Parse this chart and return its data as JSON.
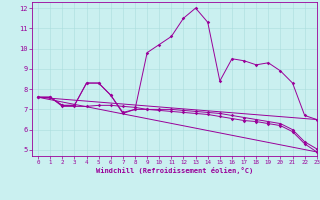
{
  "xlabel": "Windchill (Refroidissement éolien,°C)",
  "bg_color": "#caf0f0",
  "line_color": "#990099",
  "xlim": [
    -0.5,
    23
  ],
  "ylim": [
    4.7,
    12.3
  ],
  "yticks": [
    5,
    6,
    7,
    8,
    9,
    10,
    11,
    12
  ],
  "xticks": [
    0,
    1,
    2,
    3,
    4,
    5,
    6,
    7,
    8,
    9,
    10,
    11,
    12,
    13,
    14,
    15,
    16,
    17,
    18,
    19,
    20,
    21,
    22,
    23
  ],
  "line1_x": [
    0,
    1,
    2,
    3,
    4,
    5,
    6,
    7,
    8,
    9,
    10,
    11,
    12,
    13,
    14,
    15,
    16,
    17,
    18,
    19,
    20,
    21,
    22,
    23
  ],
  "line1_y": [
    7.6,
    7.6,
    7.2,
    7.2,
    8.3,
    8.3,
    7.7,
    6.8,
    7.0,
    9.8,
    10.2,
    10.6,
    11.5,
    12.0,
    11.3,
    8.4,
    9.5,
    9.4,
    9.2,
    9.3,
    8.9,
    8.3,
    6.7,
    6.5
  ],
  "line2_x": [
    0,
    1,
    2,
    3,
    4,
    5,
    6,
    7,
    8,
    9,
    10,
    11,
    12,
    13,
    14,
    15,
    16,
    17,
    18,
    19,
    20,
    21,
    22,
    23
  ],
  "line2_y": [
    7.6,
    7.6,
    7.15,
    7.15,
    7.15,
    7.2,
    7.2,
    7.15,
    7.1,
    7.0,
    6.95,
    6.9,
    6.85,
    6.8,
    6.75,
    6.65,
    6.55,
    6.45,
    6.4,
    6.3,
    6.2,
    5.9,
    5.3,
    4.9
  ],
  "line3_x": [
    0,
    23
  ],
  "line3_y": [
    7.6,
    4.9
  ],
  "line4_x": [
    0,
    23
  ],
  "line4_y": [
    7.6,
    6.5
  ],
  "line5_x": [
    0,
    1,
    2,
    3,
    4,
    5,
    6,
    7,
    8,
    9,
    10,
    11,
    12,
    13,
    14,
    15,
    16,
    17,
    18,
    19,
    20,
    21,
    22,
    23
  ],
  "line5_y": [
    7.6,
    7.6,
    7.2,
    7.2,
    8.3,
    8.3,
    7.7,
    6.85,
    7.0,
    7.0,
    7.0,
    7.0,
    6.95,
    6.9,
    6.85,
    6.8,
    6.7,
    6.6,
    6.5,
    6.4,
    6.3,
    6.0,
    5.4,
    5.05
  ]
}
